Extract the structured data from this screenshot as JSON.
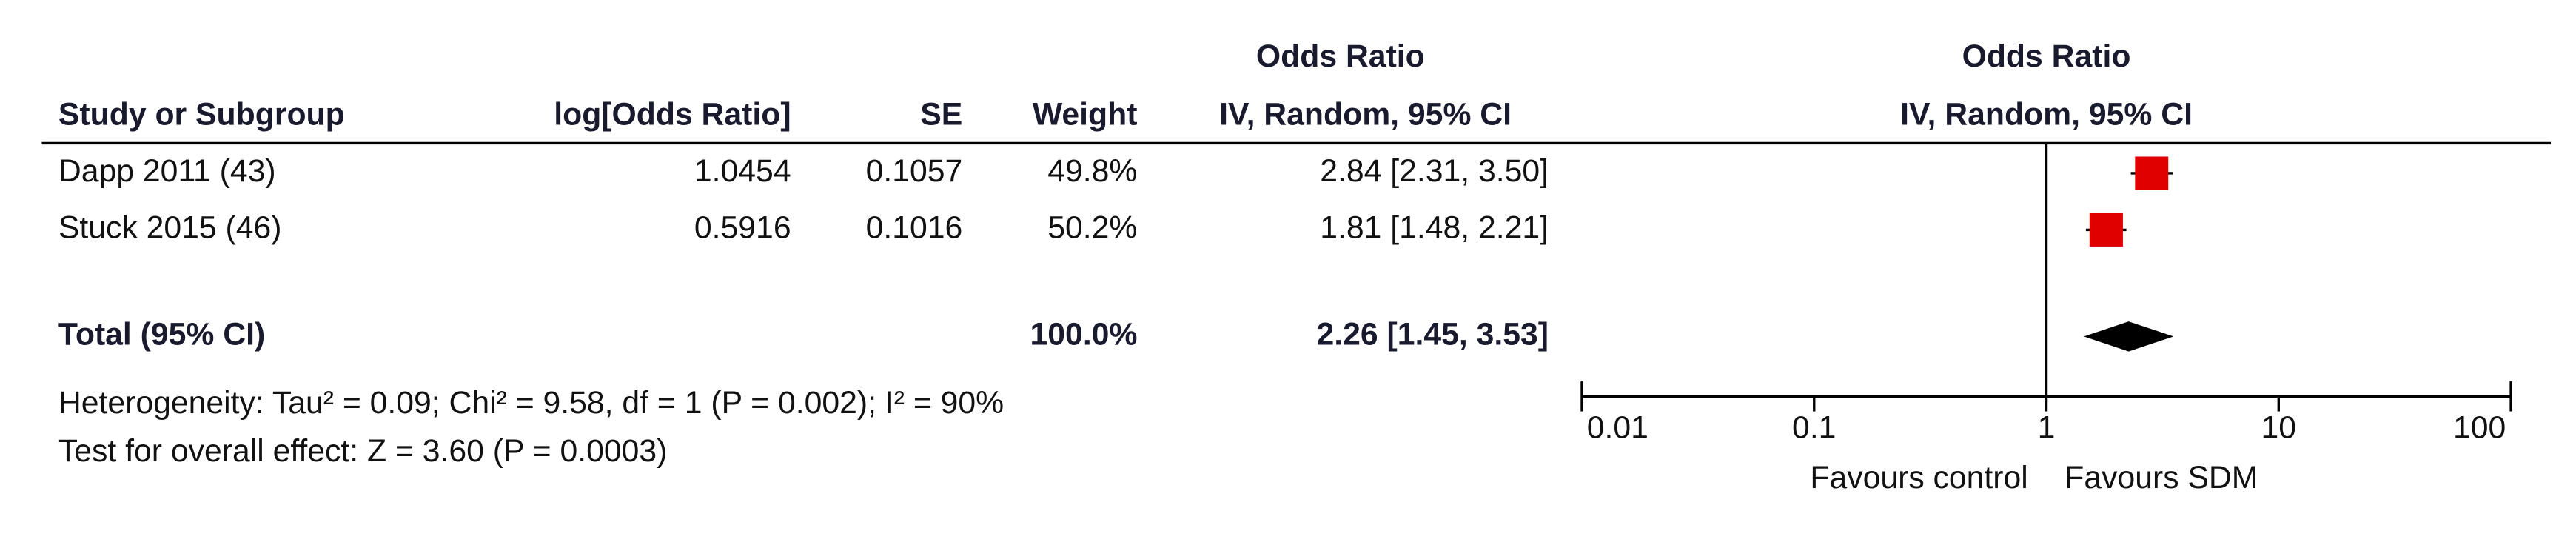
{
  "chart_data": {
    "type": "forest",
    "group_header": "Odds Ratio",
    "columns": [
      "Study or Subgroup",
      "log[Odds Ratio]",
      "SE",
      "Weight",
      "IV, Random, 95% CI"
    ],
    "plot_header": [
      "Odds Ratio",
      "IV, Random, 95% CI"
    ],
    "studies": [
      {
        "name": "Dapp 2011 (43)",
        "log_or": 1.0454,
        "se": 0.1057,
        "weight": 49.8,
        "weight_label": "49.8%",
        "or": 2.84,
        "ci_low": 2.31,
        "ci_high": 3.5,
        "ci_label": "2.84 [2.31, 3.50]"
      },
      {
        "name": "Stuck 2015 (46)",
        "log_or": 0.5916,
        "se": 0.1016,
        "weight": 50.2,
        "weight_label": "50.2%",
        "or": 1.81,
        "ci_low": 1.48,
        "ci_high": 2.21,
        "ci_label": "1.81 [1.48, 2.21]"
      }
    ],
    "total": {
      "name": "Total (95% CI)",
      "weight": 100,
      "weight_label": "100.0%",
      "or": 2.26,
      "ci_low": 1.45,
      "ci_high": 3.53,
      "ci_label": "2.26 [1.45, 3.53]"
    },
    "heterogeneity": "Heterogeneity: Tau² = 0.09; Chi² = 9.58, df = 1 (P = 0.002); I² = 90%",
    "overall_effect": "Test for overall effect: Z = 3.60 (P = 0.0003)",
    "xlim": [
      0.01,
      100
    ],
    "xticks": [
      0.01,
      0.1,
      1,
      10,
      100
    ],
    "log_scale": true,
    "x_labels": [
      "Favours control",
      "Favours SDM"
    ],
    "color": "#e00000",
    "total_color": "#000000"
  }
}
